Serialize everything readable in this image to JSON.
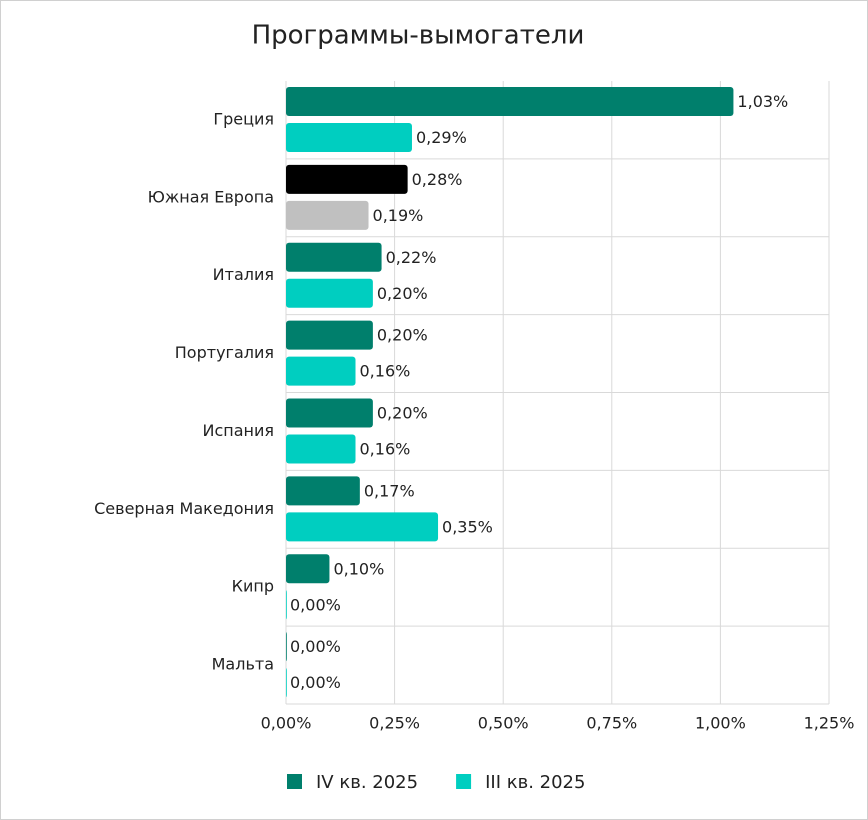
{
  "chart_data": {
    "type": "hbar",
    "title": "Программы-вымогатели",
    "categories": [
      "Греция",
      "Южная Европа",
      "Италия",
      "Португалия",
      "Испания",
      "Северная Македония",
      "Кипр",
      "Мальта"
    ],
    "series": [
      {
        "name": "IV кв. 2025",
        "color": "#007f6c",
        "point_colors": [
          "#007f6c",
          "#000000",
          "#007f6c",
          "#007f6c",
          "#007f6c",
          "#007f6c",
          "#007f6c",
          "#007f6c"
        ],
        "values": [
          1.03,
          0.28,
          0.22,
          0.2,
          0.2,
          0.17,
          0.1,
          0.0
        ],
        "value_labels": [
          "1,03%",
          "0,28%",
          "0,22%",
          "0,20%",
          "0,20%",
          "0,17%",
          "0,10%",
          "0,00%"
        ]
      },
      {
        "name": "III кв. 2025",
        "color": "#00cec0",
        "point_colors": [
          "#00cec0",
          "#c0c0c0",
          "#00cec0",
          "#00cec0",
          "#00cec0",
          "#00cec0",
          "#00cec0",
          "#00cec0"
        ],
        "values": [
          0.29,
          0.19,
          0.2,
          0.16,
          0.16,
          0.35,
          0.0,
          0.0
        ],
        "value_labels": [
          "0,29%",
          "0,19%",
          "0,20%",
          "0,16%",
          "0,16%",
          "0,35%",
          "0,00%",
          "0,00%"
        ]
      }
    ],
    "xlim": [
      0,
      1.25
    ],
    "xticks": [
      {
        "value": 0,
        "label": "0,00%"
      },
      {
        "value": 0.25,
        "label": "0,25%"
      },
      {
        "value": 0.5,
        "label": "0,50%"
      },
      {
        "value": 0.75,
        "label": "0,75%"
      },
      {
        "value": 1.0,
        "label": "1,00%"
      },
      {
        "value": 1.25,
        "label": "1,25%"
      }
    ],
    "grid": true,
    "legend": "bottom"
  }
}
